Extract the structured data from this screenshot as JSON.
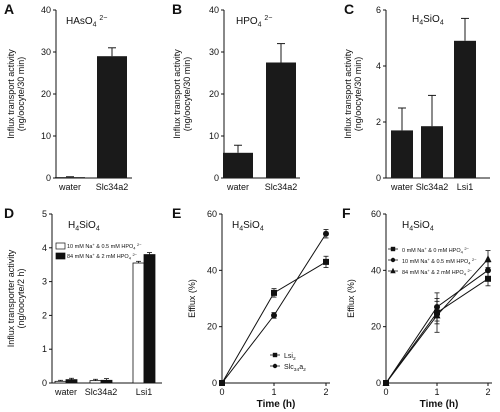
{
  "chart_data": [
    {
      "panel": "A",
      "type": "bar",
      "annotation": "HAsO4 2−",
      "ylabel": [
        "Influx transport activity",
        "(ng/oocyte/30 min)"
      ],
      "categories": [
        "water",
        "Slc34a2"
      ],
      "values": [
        0.2,
        29
      ],
      "errors": [
        0.1,
        2
      ],
      "ylim": [
        0,
        40
      ],
      "yticks": [
        0,
        10,
        20,
        30,
        40
      ]
    },
    {
      "panel": "B",
      "type": "bar",
      "annotation": "HPO4 2−",
      "ylabel": [
        "Influx transport activity",
        "(ng/oocyte/30 min)"
      ],
      "categories": [
        "water",
        "Slc34a2"
      ],
      "values": [
        6,
        27.5
      ],
      "errors": [
        1.8,
        4.5
      ],
      "ylim": [
        0,
        40
      ],
      "yticks": [
        0,
        10,
        20,
        30,
        40
      ]
    },
    {
      "panel": "C",
      "type": "bar",
      "annotation": "H4SiO4",
      "ylabel": [
        "Influx transport activity",
        "(ng/oocyte/30 min)"
      ],
      "categories": [
        "water",
        "Slc34a2",
        "Lsi1"
      ],
      "values": [
        1.7,
        1.85,
        4.9
      ],
      "errors": [
        0.8,
        1.1,
        0.8
      ],
      "ylim": [
        0,
        6
      ],
      "yticks": [
        0,
        2,
        4,
        6
      ]
    },
    {
      "panel": "D",
      "type": "bar",
      "annotation": "H4SiO4",
      "ylabel": [
        "Influx transporter activity",
        "(ng/oocyte/2 h)"
      ],
      "categories": [
        "water",
        "Slc34a2",
        "Lsi1"
      ],
      "series": [
        {
          "name": "10 mM Na+ & 0.5 mM HPO4 2−",
          "values": [
            0.05,
            0.07,
            3.55
          ],
          "errors": [
            0.03,
            0.04,
            0.05
          ],
          "color": "#ffffff"
        },
        {
          "name": "84 mM Na+ & 2 mM HPO4 2−",
          "values": [
            0.1,
            0.08,
            3.8
          ],
          "errors": [
            0.04,
            0.05,
            0.06
          ],
          "color": "#111111"
        }
      ],
      "legend_position": "top-left",
      "ylim": [
        0,
        5
      ],
      "yticks": [
        0,
        1,
        2,
        3,
        4,
        5
      ]
    },
    {
      "panel": "E",
      "type": "line",
      "annotation": "H4SiO4",
      "ylabel": "Efflux (%)",
      "xlabel": "Time (h)",
      "x": [
        0,
        1,
        2
      ],
      "series": [
        {
          "name": "Lsi2",
          "marker": "square",
          "values": [
            0,
            32,
            43
          ],
          "errors": [
            0,
            1.5,
            2
          ]
        },
        {
          "name": "Slc34a2",
          "marker": "circle",
          "values": [
            0,
            24,
            53
          ],
          "errors": [
            0,
            1,
            1.5
          ]
        }
      ],
      "legend_position": "bottom-right",
      "xlim": [
        0,
        2
      ],
      "ylim": [
        0,
        60
      ],
      "xticks": [
        0,
        1,
        2
      ],
      "yticks": [
        0,
        20,
        40,
        60
      ]
    },
    {
      "panel": "F",
      "type": "line",
      "annotation": "H4SiO4",
      "ylabel": "Efflux (%)",
      "xlabel": "Time (h)",
      "x": [
        0,
        1,
        2
      ],
      "series": [
        {
          "name": "0 mM Na+ & 0 mM HPO4 2−",
          "marker": "square",
          "values": [
            0,
            25,
            37
          ],
          "errors": [
            0,
            4,
            2.5
          ]
        },
        {
          "name": "10 mM Na+ & 0.5 mM HPO4 2−",
          "marker": "circle",
          "values": [
            0,
            27,
            40
          ],
          "errors": [
            0,
            5,
            3
          ]
        },
        {
          "name": "84 mM Na+ & 2 mM HPO4 2−",
          "marker": "triangle",
          "values": [
            0,
            24,
            44
          ],
          "errors": [
            0,
            6,
            3
          ]
        }
      ],
      "legend_position": "top-left",
      "xlim": [
        0,
        2
      ],
      "ylim": [
        0,
        60
      ],
      "xticks": [
        0,
        1,
        2
      ],
      "yticks": [
        0,
        20,
        40,
        60
      ]
    }
  ]
}
